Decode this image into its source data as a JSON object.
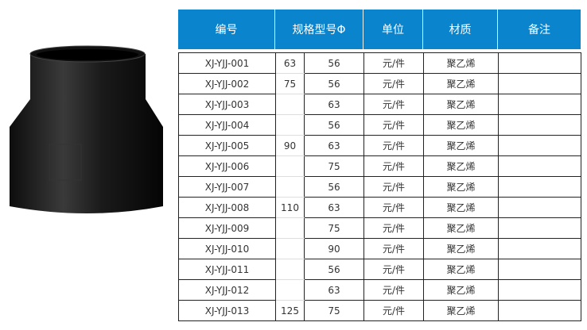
{
  "header": [
    "编号",
    "规格型号Φ",
    "单位",
    "材质",
    "备注"
  ],
  "rows": [
    [
      "XJ-YJJ-001",
      "63",
      "56",
      "元/件",
      "聚乙烯",
      ""
    ],
    [
      "XJ-YJJ-002",
      "75",
      "56",
      "元/件",
      "聚乙烯",
      ""
    ],
    [
      "XJ-YJJ-003",
      "",
      "63",
      "元/件",
      "聚乙烯",
      ""
    ],
    [
      "XJ-YJJ-004",
      "",
      "56",
      "元/件",
      "聚乙烯",
      ""
    ],
    [
      "XJ-YJJ-005",
      "90",
      "63",
      "元/件",
      "聚乙烯",
      ""
    ],
    [
      "XJ-YJJ-006",
      "",
      "75",
      "元/件",
      "聚乙烯",
      ""
    ],
    [
      "XJ-YJJ-007",
      "",
      "56",
      "元/件",
      "聚乙烯",
      ""
    ],
    [
      "XJ-YJJ-008",
      "110",
      "63",
      "元/件",
      "聚乙烯",
      ""
    ],
    [
      "XJ-YJJ-009",
      "",
      "75",
      "元/件",
      "聚乙烯",
      ""
    ],
    [
      "XJ-YJJ-010",
      "",
      "90",
      "元/件",
      "聚乙烯",
      ""
    ],
    [
      "XJ-YJJ-011",
      "",
      "56",
      "元/件",
      "聚乙烯",
      ""
    ],
    [
      "XJ-YJJ-012",
      "",
      "63",
      "元/件",
      "聚乙烯",
      ""
    ],
    [
      "XJ-YJJ-013",
      "125",
      "75",
      "元/件",
      "聚乙烯",
      ""
    ]
  ],
  "colors": {
    "header_bg": "#0a84cc"
  },
  "image": "black-pe-reducer-fitting"
}
